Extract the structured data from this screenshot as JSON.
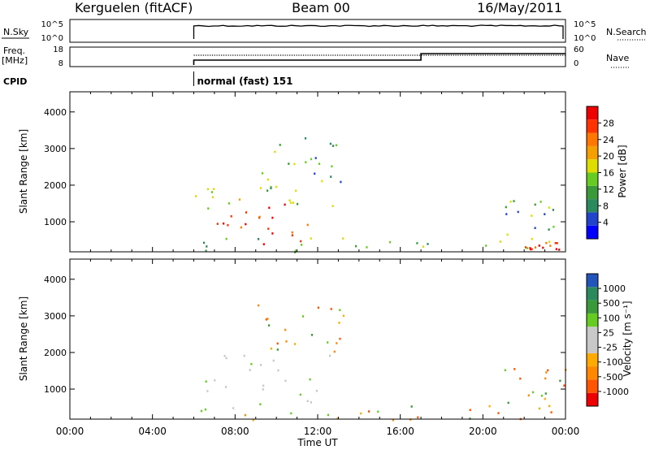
{
  "header": {
    "station": "Kerguelen (fitACF)",
    "beam": "Beam 00",
    "date": "16/May/2011"
  },
  "summary": {
    "nsky_label": "N.Sky",
    "nsky_ticks": [
      "10^5",
      "10^0"
    ],
    "nsearch_label": "N.Search",
    "nsearch_ticks": [
      "10^5",
      "10^0"
    ],
    "freq_label": "Freq.",
    "freq_unit": "[MHz]",
    "freq_ticks": [
      "18",
      "8"
    ],
    "nave_label": "Nave",
    "nave_ticks": [
      "60",
      "0"
    ],
    "cpid_label": "CPID",
    "cpid_value": "normal (fast) 151",
    "data_start_hour": 6,
    "freq_step_hour": 17
  },
  "chart_data": [
    {
      "type": "heatmap",
      "name": "power",
      "ylabel": "Slant Range [km]",
      "yticks": [
        1000,
        2000,
        3000,
        4000
      ],
      "ylim": [
        180,
        4550
      ],
      "xlim": [
        0,
        24
      ],
      "colorbar": {
        "label": "Power [dB]",
        "ticks": [
          "28",
          "24",
          "20",
          "16",
          "12",
          "8",
          "4"
        ],
        "colors": [
          "#0000ff",
          "#2244cc",
          "#2a8a5e",
          "#3a9a3a",
          "#66cc22",
          "#dddd00",
          "#f5a000",
          "#ff7700",
          "#ff3300",
          "#ee0000"
        ]
      },
      "regions": [
        {
          "x": [
            6.0,
            11.5
          ],
          "y": [
            400,
            1500
          ],
          "level": "high"
        },
        {
          "x": [
            6.0,
            12.8
          ],
          "y": [
            1300,
            2000
          ],
          "level": "mid"
        },
        {
          "x": [
            6.0,
            24.0
          ],
          "y": [
            180,
            600
          ],
          "level": "low"
        },
        {
          "x": [
            9.0,
            13.5
          ],
          "y": [
            1800,
            3500
          ],
          "level": "low"
        },
        {
          "x": [
            21.0,
            24.0
          ],
          "y": [
            500,
            1600
          ],
          "level": "low"
        },
        {
          "x": [
            22.0,
            23.8
          ],
          "y": [
            250,
            550
          ],
          "level": "high"
        }
      ]
    },
    {
      "type": "heatmap",
      "name": "velocity",
      "ylabel": "Slant Range [km]",
      "yticks": [
        1000,
        2000,
        3000,
        4000
      ],
      "ylim": [
        180,
        4550
      ],
      "xlim": [
        0,
        24
      ],
      "colorbar": {
        "label": "Velocity [m s⁻¹]",
        "ticks": [
          "1000",
          "500",
          "100",
          "25",
          "-25",
          "-100",
          "-500",
          "-1000"
        ],
        "colors": [
          "#ee0000",
          "#ff5500",
          "#ff8800",
          "#ffaa00",
          "#c8c8c8",
          "#c8c8c8",
          "#66cc22",
          "#3a9a3a",
          "#2a8a5e",
          "#2255bb"
        ]
      },
      "regions": [
        {
          "x": [
            6.0,
            12.8
          ],
          "y": [
            400,
            2000
          ],
          "level": "ground"
        },
        {
          "x": [
            6.0,
            24.0
          ],
          "y": [
            180,
            600
          ],
          "level": "mixed"
        },
        {
          "x": [
            9.0,
            13.5
          ],
          "y": [
            1800,
            3500
          ],
          "level": "mixed"
        },
        {
          "x": [
            21.0,
            24.0
          ],
          "y": [
            300,
            1600
          ],
          "level": "mixed"
        }
      ]
    }
  ],
  "xaxis": {
    "label": "Time UT",
    "ticks": [
      "00:00",
      "04:00",
      "08:00",
      "12:00",
      "16:00",
      "20:00",
      "00:00"
    ]
  }
}
